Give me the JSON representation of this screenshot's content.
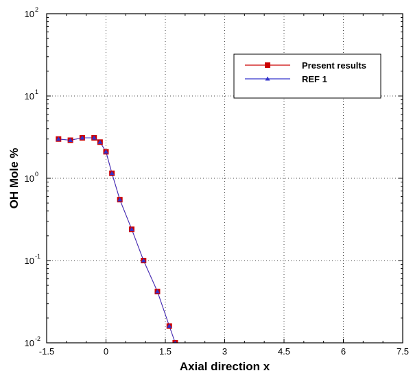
{
  "chart_data": {
    "type": "line",
    "xlabel": "Axial direction x",
    "ylabel": "OH Mole %",
    "xlim": [
      -1.5,
      7.5
    ],
    "ylim": [
      0.01,
      100
    ],
    "yscale": "log",
    "grid": true,
    "grid_style": "dotted",
    "legend_position": "top-right",
    "x_ticks": [
      -1.5,
      0,
      1.5,
      3,
      4.5,
      6,
      7.5
    ],
    "x_tick_labels": [
      "-1.5",
      "0",
      "1.5",
      "3",
      "4.5",
      "6",
      "7.5"
    ],
    "y_ticks": [
      0.01,
      0.1,
      1,
      10,
      100
    ],
    "y_tick_labels": [
      {
        "base": "10",
        "exp": "-2"
      },
      {
        "base": "10",
        "exp": "-1"
      },
      {
        "base": "10",
        "exp": "0"
      },
      {
        "base": "10",
        "exp": "1"
      },
      {
        "base": "10",
        "exp": "2"
      }
    ],
    "series": [
      {
        "name": "Present results",
        "color": "#cc0000",
        "marker": "square",
        "x": [
          -1.2,
          -0.9,
          -0.6,
          -0.3,
          -0.15,
          0.0,
          0.15,
          0.35,
          0.65,
          0.95,
          1.3,
          1.6,
          1.75
        ],
        "y": [
          3.0,
          2.9,
          3.1,
          3.1,
          2.75,
          2.1,
          1.15,
          0.55,
          0.24,
          0.1,
          0.042,
          0.016,
          0.01
        ]
      },
      {
        "name": "REF 1",
        "color": "#3333cc",
        "marker": "triangle",
        "x": [
          -1.2,
          -0.9,
          -0.6,
          -0.3,
          -0.15,
          0.0,
          0.15,
          0.35,
          0.65,
          0.95,
          1.3,
          1.6,
          1.75
        ],
        "y": [
          3.0,
          2.9,
          3.1,
          3.1,
          2.75,
          2.1,
          1.15,
          0.55,
          0.24,
          0.1,
          0.042,
          0.016,
          0.01
        ]
      }
    ]
  }
}
